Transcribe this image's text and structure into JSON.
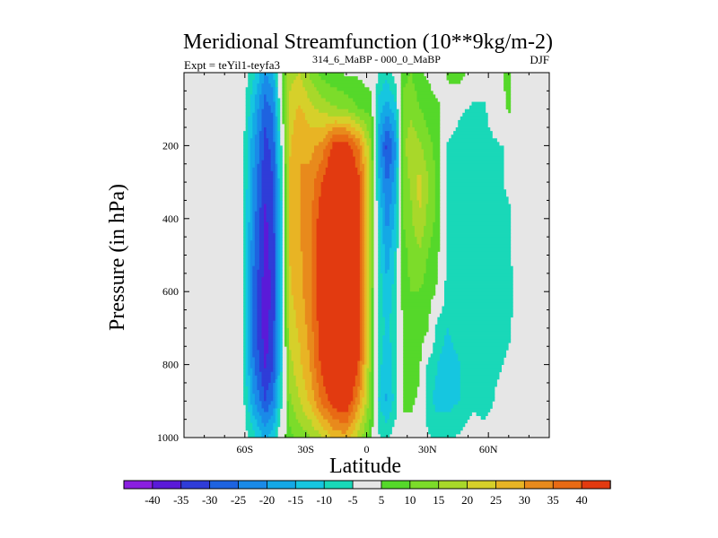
{
  "chart_data": {
    "type": "heatmap",
    "title": "Meridional Streamfunction (10**9kg/m-2)",
    "subtitle_left": "Expt = teYil1-teyfa3",
    "subtitle_left_super": "314_6_MaBP - 000_0_MaBP",
    "subtitle_right": "DJF",
    "xlabel": "Latitude",
    "ylabel": "Pressure (in hPa)",
    "xlim": [
      -90,
      90
    ],
    "ylim": [
      1000,
      0
    ],
    "x_ticks": [
      {
        "value": -60,
        "label": "60S"
      },
      {
        "value": -30,
        "label": "30S"
      },
      {
        "value": 0,
        "label": "0"
      },
      {
        "value": 30,
        "label": "30N"
      },
      {
        "value": 60,
        "label": "60N"
      }
    ],
    "y_ticks": [
      {
        "value": 200,
        "label": "200"
      },
      {
        "value": 400,
        "label": "400"
      },
      {
        "value": 600,
        "label": "600"
      },
      {
        "value": 800,
        "label": "800"
      },
      {
        "value": 1000,
        "label": "1000"
      }
    ],
    "levels": [
      -40,
      -35,
      -30,
      -25,
      -20,
      -15,
      -10,
      -5,
      5,
      10,
      15,
      20,
      25,
      30,
      35,
      40
    ],
    "colors": [
      "#8a1fe0",
      "#5a1ad8",
      "#2f3cd8",
      "#1e63e0",
      "#1a8ae8",
      "#14a8e6",
      "#16c6e0",
      "#19d8b8",
      "#e6e6e6",
      "#55d82a",
      "#7cdc2a",
      "#a8d82a",
      "#d6d02a",
      "#e8b424",
      "#e88a1c",
      "#e86a14",
      "#e23a10"
    ],
    "background_color": "#e6e6e6",
    "data_columns": [
      {
        "lat": -88,
        "values": [
          0,
          0,
          0,
          0,
          0,
          0,
          0,
          0,
          0,
          0,
          0
        ]
      },
      {
        "lat": -76,
        "values": [
          0,
          0,
          0,
          0,
          0,
          0,
          0,
          0,
          0,
          0,
          0
        ]
      },
      {
        "lat": -62,
        "values": [
          0,
          0,
          0,
          0,
          0,
          0,
          0,
          0,
          0,
          0,
          0
        ]
      },
      {
        "lat": -56,
        "values": [
          -8,
          -14,
          -18,
          -20,
          -22,
          -24,
          -25,
          -26,
          -24,
          -18,
          -8
        ]
      },
      {
        "lat": -50,
        "values": [
          -20,
          -28,
          -32,
          -34,
          -36,
          -37,
          -38,
          -38,
          -36,
          -30,
          -16
        ]
      },
      {
        "lat": -46,
        "values": [
          -16,
          -24,
          -28,
          -30,
          -32,
          -33,
          -33,
          -32,
          -30,
          -24,
          -12
        ]
      },
      {
        "lat": -42,
        "values": [
          6,
          2,
          -4,
          -8,
          -10,
          -12,
          -12,
          -12,
          -10,
          -6,
          2
        ]
      },
      {
        "lat": -38,
        "values": [
          18,
          22,
          24,
          26,
          26,
          25,
          24,
          22,
          18,
          14,
          8
        ]
      },
      {
        "lat": -33,
        "values": [
          20,
          26,
          30,
          30,
          30,
          29,
          28,
          26,
          24,
          20,
          12
        ]
      },
      {
        "lat": -28,
        "values": [
          14,
          22,
          28,
          32,
          33,
          34,
          34,
          32,
          30,
          26,
          14
        ]
      },
      {
        "lat": -22,
        "values": [
          8,
          18,
          32,
          40,
          44,
          46,
          46,
          44,
          42,
          36,
          20
        ]
      },
      {
        "lat": -16,
        "values": [
          6,
          16,
          42,
          48,
          50,
          52,
          52,
          52,
          50,
          44,
          26
        ]
      },
      {
        "lat": -10,
        "values": [
          4,
          14,
          44,
          50,
          52,
          54,
          54,
          54,
          52,
          46,
          28
        ]
      },
      {
        "lat": -4,
        "values": [
          4,
          10,
          34,
          42,
          44,
          44,
          44,
          42,
          40,
          32,
          18
        ]
      },
      {
        "lat": 2,
        "values": [
          2,
          8,
          16,
          18,
          18,
          16,
          14,
          14,
          14,
          12,
          6
        ]
      },
      {
        "lat": 6,
        "values": [
          -6,
          -12,
          -18,
          -14,
          -10,
          -8,
          -6,
          -6,
          -8,
          -10,
          -4
        ]
      },
      {
        "lat": 10,
        "values": [
          -8,
          -18,
          -32,
          -26,
          -22,
          -18,
          -14,
          -12,
          -14,
          -16,
          -6
        ]
      },
      {
        "lat": 14,
        "values": [
          -2,
          -12,
          -22,
          -18,
          -14,
          -10,
          -8,
          -6,
          -8,
          -8,
          -2
        ]
      },
      {
        "lat": 18,
        "values": [
          8,
          12,
          14,
          12,
          10,
          8,
          8,
          6,
          6,
          6,
          2
        ]
      },
      {
        "lat": 22,
        "values": [
          10,
          14,
          18,
          16,
          14,
          12,
          10,
          8,
          6,
          6,
          2
        ]
      },
      {
        "lat": 26,
        "values": [
          6,
          10,
          16,
          22,
          20,
          14,
          10,
          8,
          6,
          4,
          2
        ]
      },
      {
        "lat": 30,
        "values": [
          4,
          8,
          12,
          16,
          14,
          10,
          8,
          6,
          -6,
          -8,
          -4
        ]
      },
      {
        "lat": 35,
        "values": [
          2,
          6,
          8,
          8,
          8,
          6,
          4,
          -8,
          -10,
          -12,
          -6
        ]
      },
      {
        "lat": 40,
        "values": [
          6,
          2,
          -6,
          -8,
          -8,
          -8,
          -8,
          -10,
          -12,
          -12,
          -6
        ]
      },
      {
        "lat": 46,
        "values": [
          8,
          -4,
          -8,
          -8,
          -8,
          -8,
          -8,
          -8,
          -10,
          -10,
          -4
        ]
      },
      {
        "lat": 52,
        "values": [
          0,
          -6,
          -8,
          -8,
          -8,
          -8,
          -8,
          -8,
          -8,
          -6,
          -2
        ]
      },
      {
        "lat": 58,
        "values": [
          0,
          -6,
          -8,
          -8,
          -8,
          -8,
          -8,
          -8,
          -10,
          -8,
          -2
        ]
      },
      {
        "lat": 64,
        "values": [
          4,
          2,
          -6,
          -6,
          -8,
          -8,
          -8,
          -8,
          -6,
          -4,
          0
        ]
      },
      {
        "lat": 70,
        "values": [
          6,
          6,
          -4,
          -4,
          -6,
          -6,
          -8,
          -6,
          -4,
          -2,
          0
        ]
      },
      {
        "lat": 76,
        "values": [
          0,
          0,
          0,
          0,
          0,
          0,
          0,
          0,
          0,
          0,
          0
        ]
      },
      {
        "lat": 88,
        "values": [
          0,
          0,
          0,
          0,
          0,
          0,
          0,
          0,
          0,
          0,
          0
        ]
      }
    ],
    "pressure_levels": [
      0,
      100,
      200,
      300,
      400,
      500,
      600,
      700,
      800,
      900,
      1000
    ],
    "colorbar_labels": [
      "-40",
      "-35",
      "-30",
      "-25",
      "-20",
      "-15",
      "-10",
      "-5",
      "5",
      "10",
      "15",
      "20",
      "25",
      "30",
      "35",
      "40"
    ]
  }
}
